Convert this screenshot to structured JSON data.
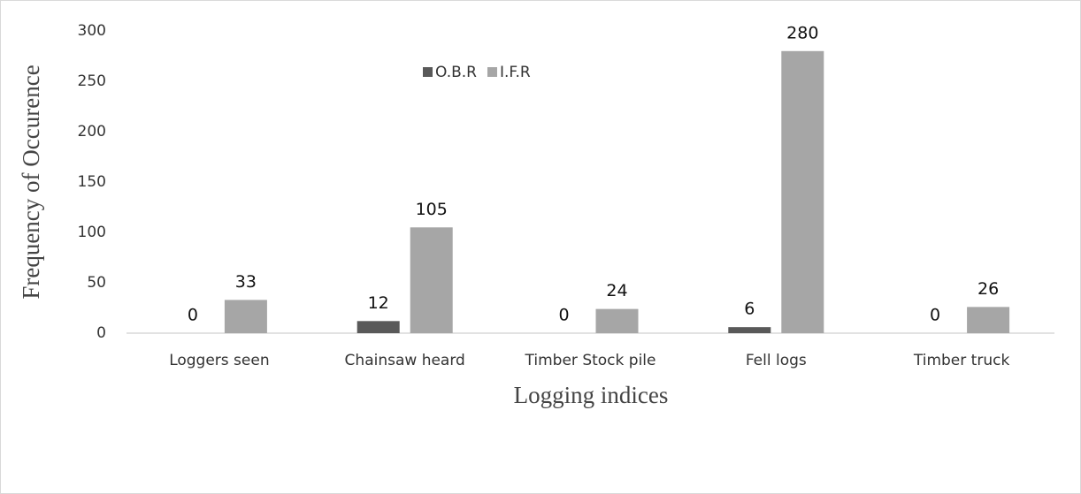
{
  "chart_data": {
    "type": "bar",
    "categories": [
      "Loggers seen",
      "Chainsaw heard",
      "Timber Stock pile",
      "Fell logs",
      "Timber truck"
    ],
    "series": [
      {
        "name": "O.B.R",
        "color": "#595959",
        "values": [
          0,
          12,
          0,
          6,
          0
        ]
      },
      {
        "name": "I.F.R",
        "color": "#a6a6a6",
        "values": [
          33,
          105,
          24,
          280,
          26
        ]
      }
    ],
    "xlabel": "Logging indices",
    "ylabel": "Frequency of Occurence",
    "ylim": [
      0,
      300
    ],
    "yticks": [
      0,
      50,
      100,
      150,
      200,
      250,
      300
    ],
    "grid": false,
    "legend": "top"
  }
}
